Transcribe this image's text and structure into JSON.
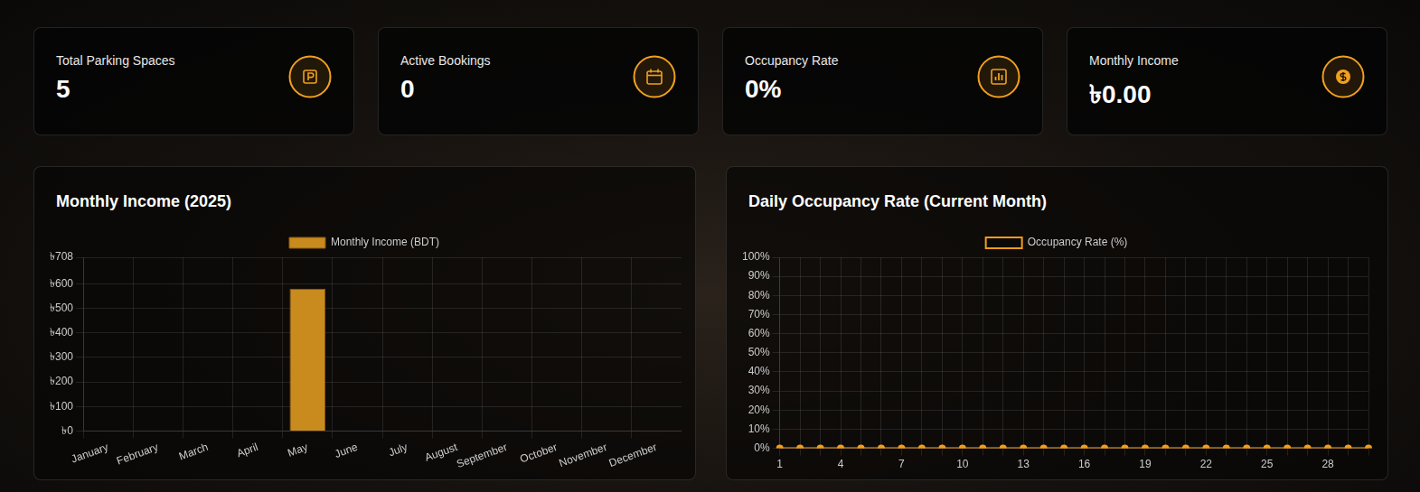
{
  "cards": [
    {
      "label": "Total Parking Spaces",
      "value": "5"
    },
    {
      "label": "Active Bookings",
      "value": "0"
    },
    {
      "label": "Occupancy Rate",
      "value": "0%"
    },
    {
      "label": "Monthly Income",
      "value": "৳0.00"
    }
  ],
  "chart_data": [
    {
      "type": "bar",
      "title": "Monthly Income (2025)",
      "categories": [
        "January",
        "February",
        "March",
        "April",
        "May",
        "June",
        "July",
        "August",
        "September",
        "October",
        "November",
        "December"
      ],
      "series": [
        {
          "name": "Monthly Income (BDT)",
          "color": "#c98a1e",
          "values": [
            0,
            0,
            0,
            0,
            580,
            0,
            0,
            0,
            0,
            0,
            0,
            0
          ]
        }
      ],
      "ylim": [
        0,
        708
      ],
      "yticks": [
        {
          "value": 0,
          "label": "৳0"
        },
        {
          "value": 100,
          "label": "৳100"
        },
        {
          "value": 200,
          "label": "৳200"
        },
        {
          "value": 300,
          "label": "৳300"
        },
        {
          "value": 400,
          "label": "৳400"
        },
        {
          "value": 500,
          "label": "৳500"
        },
        {
          "value": 600,
          "label": "৳600"
        },
        {
          "value": 708,
          "label": "৳708"
        }
      ],
      "grid": true,
      "legend": "top"
    },
    {
      "type": "line",
      "title": "Daily Occupancy Rate (Current Month)",
      "categories": [
        1,
        null,
        null,
        4,
        null,
        null,
        7,
        null,
        null,
        10,
        null,
        null,
        13,
        null,
        null,
        16,
        null,
        null,
        19,
        null,
        null,
        22,
        null,
        null,
        25,
        null,
        null,
        28,
        null,
        null
      ],
      "series": [
        {
          "name": "Occupancy Rate (%)",
          "color": "#f29d1b",
          "marker": "circle",
          "values": [
            0,
            0,
            0,
            0,
            0,
            0,
            0,
            0,
            0,
            0,
            0,
            0,
            0,
            0,
            0,
            0,
            0,
            0,
            0,
            0,
            0,
            0,
            0,
            0,
            0,
            0,
            0,
            0,
            0,
            0
          ]
        }
      ],
      "ylim": [
        0,
        100
      ],
      "yticks": [
        {
          "value": 0,
          "label": "0%"
        },
        {
          "value": 10,
          "label": "10%"
        },
        {
          "value": 20,
          "label": "20%"
        },
        {
          "value": 30,
          "label": "30%"
        },
        {
          "value": 40,
          "label": "40%"
        },
        {
          "value": 50,
          "label": "50%"
        },
        {
          "value": 60,
          "label": "60%"
        },
        {
          "value": 70,
          "label": "70%"
        },
        {
          "value": 80,
          "label": "80%"
        },
        {
          "value": 90,
          "label": "90%"
        },
        {
          "value": 100,
          "label": "100%"
        }
      ],
      "grid": true,
      "legend": "top"
    }
  ]
}
